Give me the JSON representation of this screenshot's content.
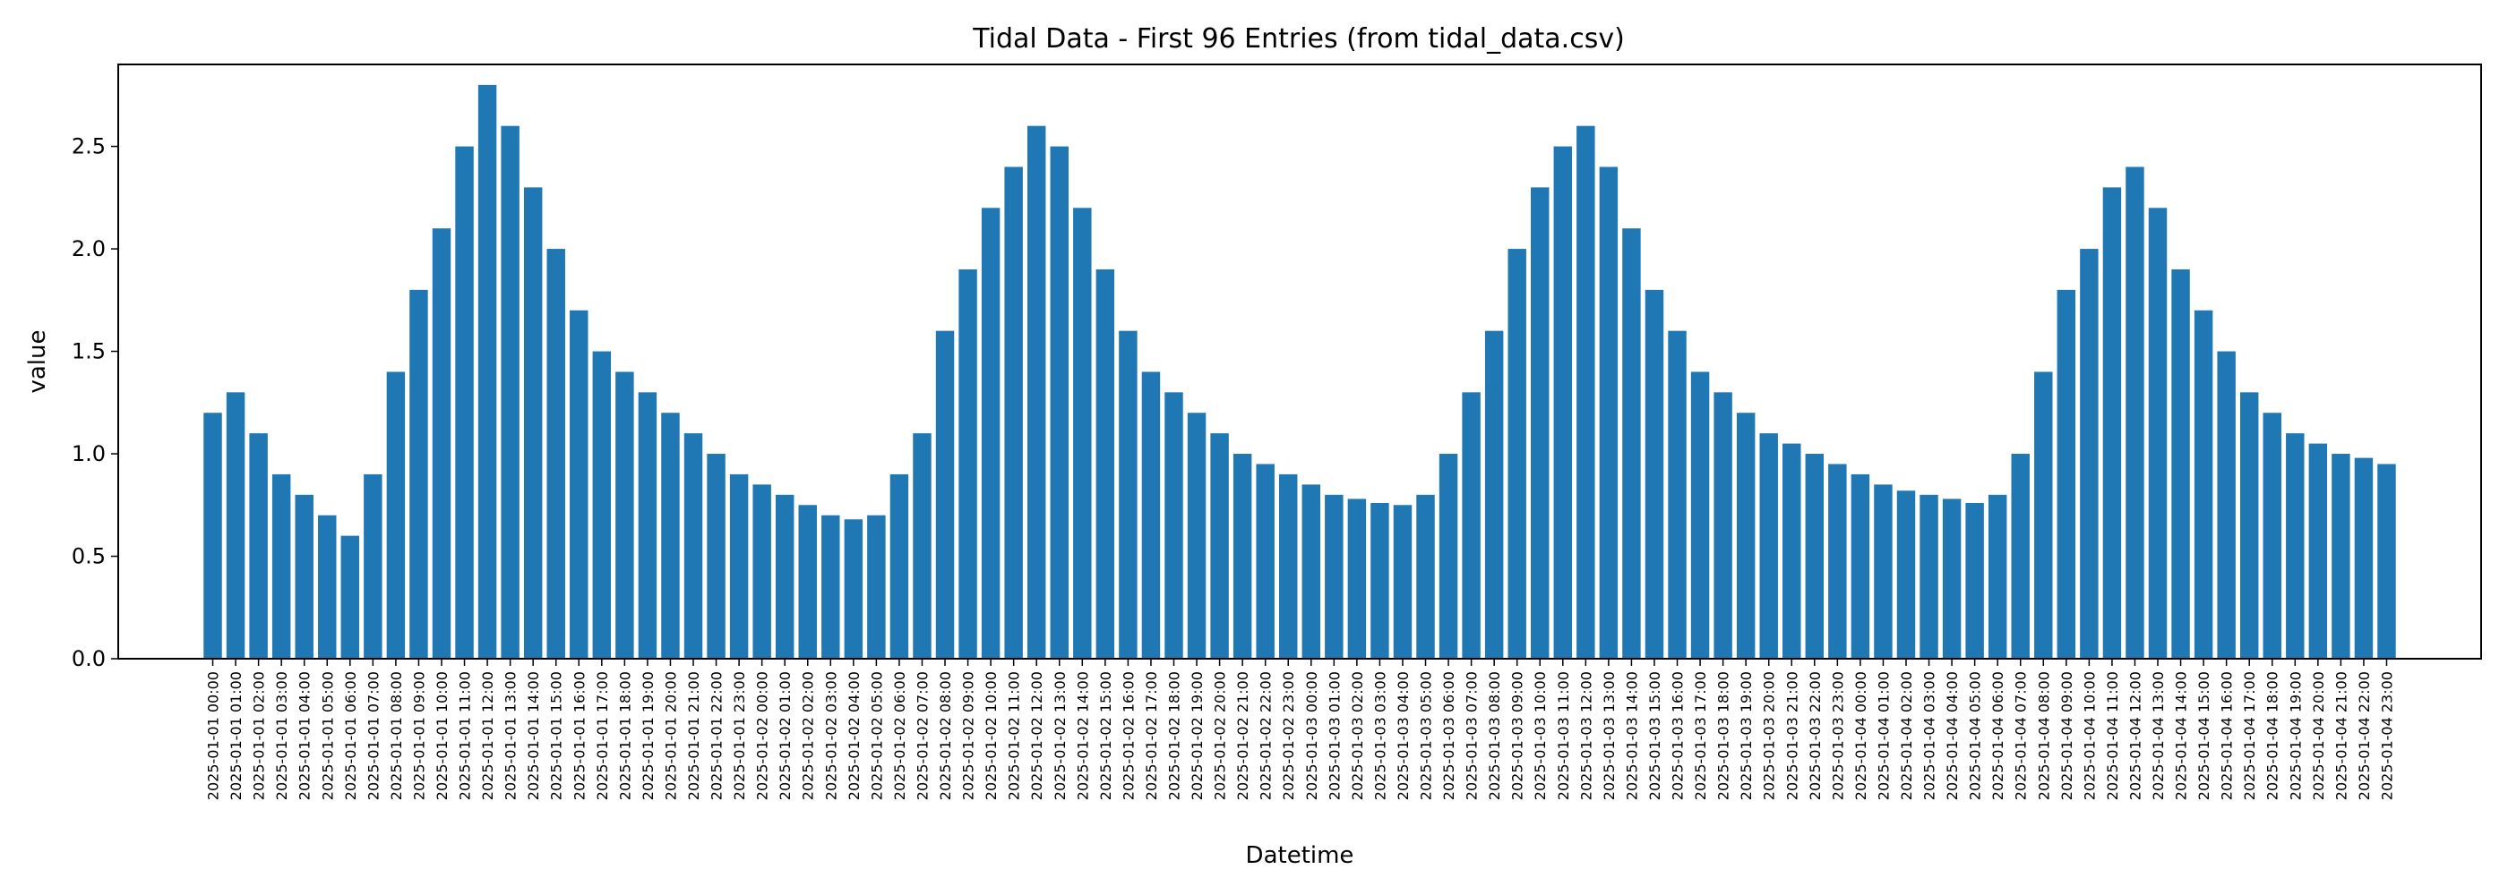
{
  "chart_data": {
    "type": "bar",
    "title": "Tidal Data - First 96 Entries (from tidal_data.csv)",
    "xlabel": "Datetime",
    "ylabel": "value",
    "ylim": [
      0,
      2.9
    ],
    "yticks": [
      "0.0",
      "0.5",
      "1.0",
      "1.5",
      "2.0",
      "2.5"
    ],
    "grid": false,
    "legend": "none",
    "bar_color": "#1f77b4",
    "categories": [
      "2025-01-01 00:00",
      "2025-01-01 01:00",
      "2025-01-01 02:00",
      "2025-01-01 03:00",
      "2025-01-01 04:00",
      "2025-01-01 05:00",
      "2025-01-01 06:00",
      "2025-01-01 07:00",
      "2025-01-01 08:00",
      "2025-01-01 09:00",
      "2025-01-01 10:00",
      "2025-01-01 11:00",
      "2025-01-01 12:00",
      "2025-01-01 13:00",
      "2025-01-01 14:00",
      "2025-01-01 15:00",
      "2025-01-01 16:00",
      "2025-01-01 17:00",
      "2025-01-01 18:00",
      "2025-01-01 19:00",
      "2025-01-01 20:00",
      "2025-01-01 21:00",
      "2025-01-01 22:00",
      "2025-01-01 23:00",
      "2025-01-02 00:00",
      "2025-01-02 01:00",
      "2025-01-02 02:00",
      "2025-01-02 03:00",
      "2025-01-02 04:00",
      "2025-01-02 05:00",
      "2025-01-02 06:00",
      "2025-01-02 07:00",
      "2025-01-02 08:00",
      "2025-01-02 09:00",
      "2025-01-02 10:00",
      "2025-01-02 11:00",
      "2025-01-02 12:00",
      "2025-01-02 13:00",
      "2025-01-02 14:00",
      "2025-01-02 15:00",
      "2025-01-02 16:00",
      "2025-01-02 17:00",
      "2025-01-02 18:00",
      "2025-01-02 19:00",
      "2025-01-02 20:00",
      "2025-01-02 21:00",
      "2025-01-02 22:00",
      "2025-01-02 23:00",
      "2025-01-03 00:00",
      "2025-01-03 01:00",
      "2025-01-03 02:00",
      "2025-01-03 03:00",
      "2025-01-03 04:00",
      "2025-01-03 05:00",
      "2025-01-03 06:00",
      "2025-01-03 07:00",
      "2025-01-03 08:00",
      "2025-01-03 09:00",
      "2025-01-03 10:00",
      "2025-01-03 11:00",
      "2025-01-03 12:00",
      "2025-01-03 13:00",
      "2025-01-03 14:00",
      "2025-01-03 15:00",
      "2025-01-03 16:00",
      "2025-01-03 17:00",
      "2025-01-03 18:00",
      "2025-01-03 19:00",
      "2025-01-03 20:00",
      "2025-01-03 21:00",
      "2025-01-03 22:00",
      "2025-01-03 23:00",
      "2025-01-04 00:00",
      "2025-01-04 01:00",
      "2025-01-04 02:00",
      "2025-01-04 03:00",
      "2025-01-04 04:00",
      "2025-01-04 05:00",
      "2025-01-04 06:00",
      "2025-01-04 07:00",
      "2025-01-04 08:00",
      "2025-01-04 09:00",
      "2025-01-04 10:00",
      "2025-01-04 11:00",
      "2025-01-04 12:00",
      "2025-01-04 13:00",
      "2025-01-04 14:00",
      "2025-01-04 15:00",
      "2025-01-04 16:00",
      "2025-01-04 17:00",
      "2025-01-04 18:00",
      "2025-01-04 19:00",
      "2025-01-04 20:00",
      "2025-01-04 21:00",
      "2025-01-04 22:00",
      "2025-01-04 23:00"
    ],
    "values": [
      1.2,
      1.3,
      1.1,
      0.9,
      0.8,
      0.7,
      0.6,
      0.9,
      1.4,
      1.8,
      2.1,
      2.5,
      2.8,
      2.6,
      2.3,
      2.0,
      1.7,
      1.5,
      1.4,
      1.3,
      1.2,
      1.1,
      1.0,
      0.9,
      0.85,
      0.8,
      0.75,
      0.7,
      0.68,
      0.7,
      0.9,
      1.1,
      1.6,
      1.9,
      2.2,
      2.4,
      2.6,
      2.5,
      2.2,
      1.9,
      1.6,
      1.4,
      1.3,
      1.2,
      1.1,
      1.0,
      0.95,
      0.9,
      0.85,
      0.8,
      0.78,
      0.76,
      0.75,
      0.8,
      1.0,
      1.3,
      1.6,
      2.0,
      2.3,
      2.5,
      2.6,
      2.4,
      2.1,
      1.8,
      1.6,
      1.4,
      1.3,
      1.2,
      1.1,
      1.05,
      1.0,
      0.95,
      0.9,
      0.85,
      0.82,
      0.8,
      0.78,
      0.76,
      0.8,
      1.0,
      1.4,
      1.8,
      2.0,
      2.3,
      2.4,
      2.2,
      1.9,
      1.7,
      1.5,
      1.3,
      1.2,
      1.1,
      1.05,
      1.0,
      0.98,
      0.95
    ]
  }
}
